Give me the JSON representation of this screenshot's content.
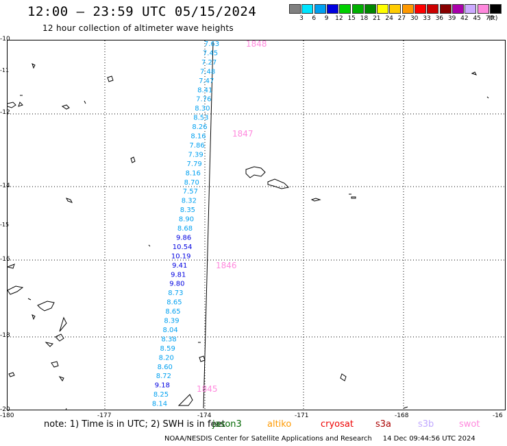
{
  "header": {
    "title": "12:00 — 23:59 UTC 05/15/2024",
    "subtitle": "12 hour collection of altimeter wave heights"
  },
  "legend": {
    "unit": "(ft)",
    "bins": [
      {
        "label": "3",
        "color": "#808080"
      },
      {
        "label": "6",
        "color": "#00e5ff"
      },
      {
        "label": "9",
        "color": "#00a0f0"
      },
      {
        "label": "12",
        "color": "#0000e0"
      },
      {
        "label": "15",
        "color": "#00d000"
      },
      {
        "label": "18",
        "color": "#00b000"
      },
      {
        "label": "21",
        "color": "#008800"
      },
      {
        "label": "24",
        "color": "#ffff00"
      },
      {
        "label": "27",
        "color": "#ffcc00"
      },
      {
        "label": "30",
        "color": "#ff9900"
      },
      {
        "label": "33",
        "color": "#ff0000"
      },
      {
        "label": "36",
        "color": "#cc0000"
      },
      {
        "label": "39",
        "color": "#880000"
      },
      {
        "label": "42",
        "color": "#aa00aa"
      },
      {
        "label": "45",
        "color": "#ccaaff"
      },
      {
        "label": "70",
        "color": "#ff88dd"
      },
      {
        "label": "",
        "color": "#000000"
      }
    ]
  },
  "map": {
    "lon_ticks": [
      "-180",
      "-177",
      "-174",
      "-171",
      "-168",
      "-16"
    ],
    "lat_ticks": [
      "-10",
      "-12",
      "-14",
      "-16",
      "-18",
      "-20"
    ],
    "lat_minor": [
      "-11",
      "-15"
    ],
    "values": [
      {
        "text": "7.63",
        "color": "#00a0f0"
      },
      {
        "text": "7.45",
        "color": "#00a0f0"
      },
      {
        "text": "7.27",
        "color": "#00a0f0"
      },
      {
        "text": "7.48",
        "color": "#00a0f0"
      },
      {
        "text": "7.47",
        "color": "#00a0f0"
      },
      {
        "text": "8.41",
        "color": "#00a0f0"
      },
      {
        "text": "7.76",
        "color": "#00a0f0"
      },
      {
        "text": "8.30",
        "color": "#00a0f0"
      },
      {
        "text": "8.53",
        "color": "#00a0f0"
      },
      {
        "text": "8.26",
        "color": "#00a0f0"
      },
      {
        "text": "8.16",
        "color": "#00a0f0"
      },
      {
        "text": "7.86",
        "color": "#00a0f0"
      },
      {
        "text": "7.39",
        "color": "#00a0f0"
      },
      {
        "text": "7.79",
        "color": "#00a0f0"
      },
      {
        "text": "8.16",
        "color": "#00a0f0"
      },
      {
        "text": "8.70",
        "color": "#00a0f0"
      },
      {
        "text": "7.57",
        "color": "#00a0f0"
      },
      {
        "text": "8.32",
        "color": "#00a0f0"
      },
      {
        "text": "8.35",
        "color": "#00a0f0"
      },
      {
        "text": "8.90",
        "color": "#00a0f0"
      },
      {
        "text": "8.68",
        "color": "#00a0f0"
      },
      {
        "text": "9.86",
        "color": "#0000e0"
      },
      {
        "text": "10.54",
        "color": "#0000e0"
      },
      {
        "text": "10.19",
        "color": "#0000e0"
      },
      {
        "text": "9.41",
        "color": "#0000e0"
      },
      {
        "text": "9.81",
        "color": "#0000e0"
      },
      {
        "text": "9.80",
        "color": "#0000e0"
      },
      {
        "text": "8.73",
        "color": "#00a0f0"
      },
      {
        "text": "8.65",
        "color": "#00a0f0"
      },
      {
        "text": "8.65",
        "color": "#00a0f0"
      },
      {
        "text": "8.39",
        "color": "#00a0f0"
      },
      {
        "text": "8.04",
        "color": "#00a0f0"
      },
      {
        "text": "8.38",
        "color": "#00a0f0"
      },
      {
        "text": "8.59",
        "color": "#00a0f0"
      },
      {
        "text": "8.20",
        "color": "#00a0f0"
      },
      {
        "text": "8.60",
        "color": "#00a0f0"
      },
      {
        "text": "8.72",
        "color": "#00a0f0"
      },
      {
        "text": "9.18",
        "color": "#0000e0"
      },
      {
        "text": "8.25",
        "color": "#00a0f0"
      },
      {
        "text": "8.14",
        "color": "#00a0f0"
      }
    ],
    "pass_times": [
      "1848",
      "1847",
      "1846",
      "1845"
    ]
  },
  "note": {
    "text": "note: 1) Time is in UTC; 2) SWH is in feet",
    "satellites": [
      {
        "name": "jason3",
        "color": "#006600"
      },
      {
        "name": "altiko",
        "color": "#ff9900"
      },
      {
        "name": "cryosat",
        "color": "#ee0000"
      },
      {
        "name": "s3a",
        "color": "#aa0000"
      },
      {
        "name": "s3b",
        "color": "#c0a8ff"
      },
      {
        "name": "swot",
        "color": "#ff88dd"
      }
    ]
  },
  "footer": {
    "credit": "NOAA/NESDIS Center for Satellite Applications and Research",
    "timestamp": "14 Dec 09:44:56 UTC 2024"
  }
}
